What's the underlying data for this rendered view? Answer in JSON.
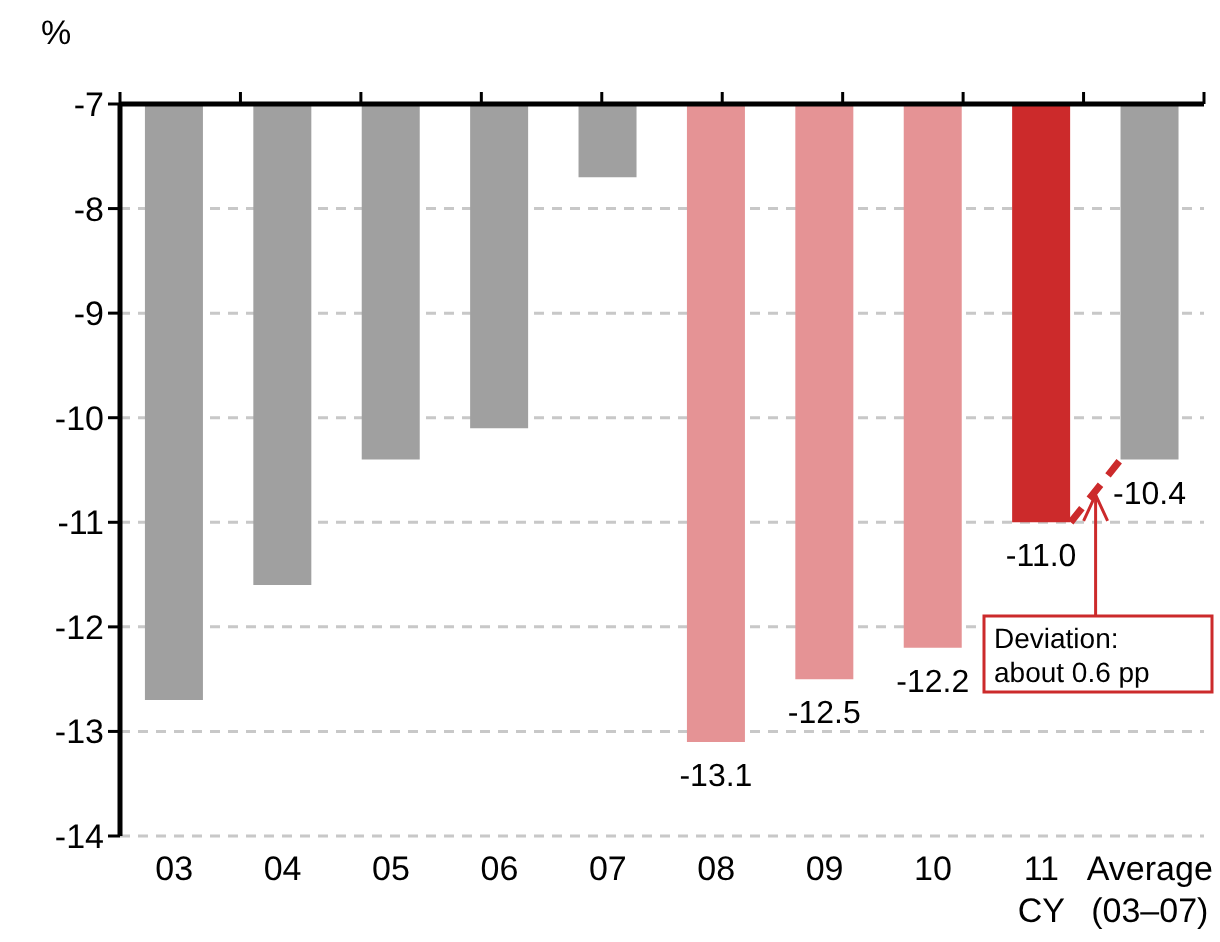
{
  "chart_data": {
    "type": "bar",
    "ylabel": "%",
    "categories": [
      "03",
      "04",
      "05",
      "06",
      "07",
      "08",
      "09",
      "10",
      "11\nCY",
      "Average\n(03–07)"
    ],
    "series": [
      {
        "colors": [
          "#a0a0a0",
          "#a0a0a0",
          "#a0a0a0",
          "#a0a0a0",
          "#a0a0a0",
          "#e59395",
          "#e59395",
          "#e59395",
          "#cc2a2b",
          "#a0a0a0"
        ],
        "values": [
          -12.7,
          -11.6,
          -10.4,
          -10.1,
          -7.7,
          -13.1,
          -12.5,
          -12.2,
          -11.0,
          -10.4
        ],
        "value_labels": [
          null,
          null,
          null,
          null,
          null,
          "-13.1",
          "-12.5",
          "-12.2",
          "-11.0",
          "-10.4"
        ]
      }
    ],
    "ylim": [
      -14,
      -7
    ],
    "yticks": [
      -14,
      -13,
      -12,
      -11,
      -10,
      -9,
      -8,
      -7
    ],
    "grid": "y",
    "annotations": [
      "Deviation:\nabout 0.6 pp"
    ]
  }
}
